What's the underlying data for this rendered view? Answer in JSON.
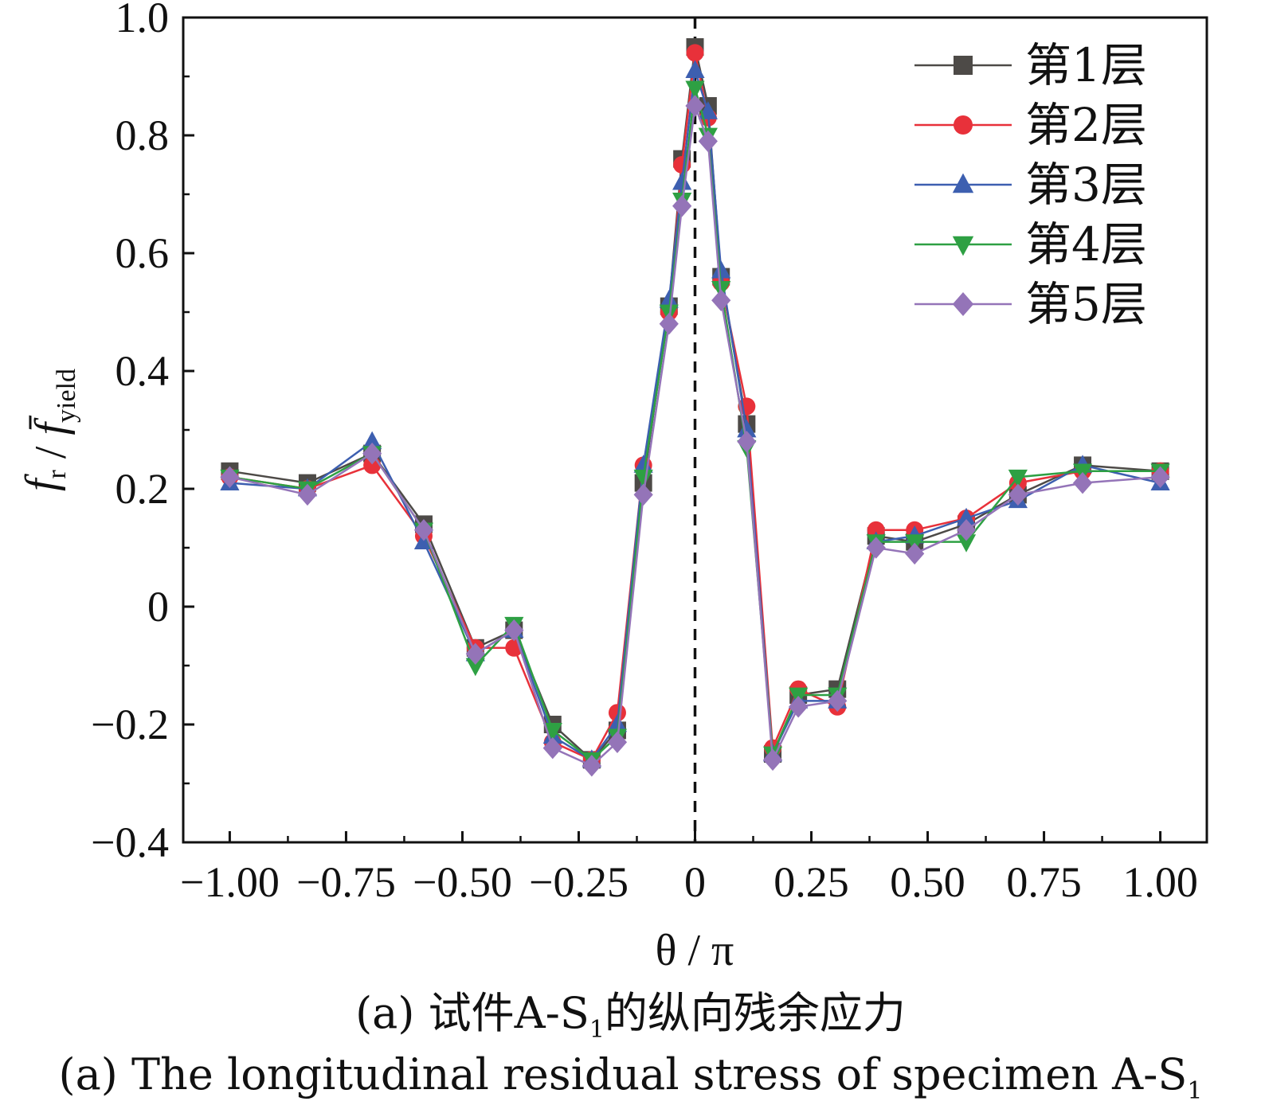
{
  "chart_data": {
    "type": "line",
    "xlabel": "θ / π",
    "ylabel": "f_r / f̄_yield",
    "xlim": [
      -1.1,
      1.1
    ],
    "ylim": [
      -0.4,
      1.0
    ],
    "x_ticks": [
      -1.0,
      -0.75,
      -0.5,
      -0.25,
      0,
      0.25,
      0.5,
      0.75,
      1.0
    ],
    "x_tick_labels": [
      "−1.00",
      "−0.75",
      "−0.50",
      "−0.25",
      "0",
      "0.25",
      "0.50",
      "0.75",
      "1.00"
    ],
    "y_ticks": [
      -0.4,
      -0.2,
      0,
      0.2,
      0.4,
      0.6,
      0.8,
      1.0
    ],
    "y_tick_labels": [
      "−0.4",
      "−0.2",
      "0",
      "0.2",
      "0.4",
      "0.6",
      "0.8",
      "1.0"
    ],
    "reference_line": {
      "x": 0,
      "style": "dashed"
    },
    "legend_position": "top-right",
    "grid": false,
    "x": [
      -1.0,
      -0.833,
      -0.694,
      -0.583,
      -0.472,
      -0.389,
      -0.306,
      -0.222,
      -0.167,
      -0.111,
      -0.056,
      -0.028,
      0,
      0.028,
      0.056,
      0.111,
      0.167,
      0.222,
      0.306,
      0.389,
      0.472,
      0.583,
      0.694,
      0.833,
      1.0
    ],
    "series": [
      {
        "name": "第1层",
        "color": "#4d4a47",
        "marker": "square",
        "values": [
          0.23,
          0.21,
          0.26,
          0.14,
          -0.07,
          -0.04,
          -0.2,
          -0.26,
          -0.21,
          0.21,
          0.51,
          0.76,
          0.95,
          0.85,
          0.56,
          0.31,
          -0.25,
          -0.15,
          -0.14,
          0.12,
          0.11,
          0.14,
          0.19,
          0.24,
          0.23
        ]
      },
      {
        "name": "第2层",
        "color": "#e8313a",
        "marker": "circle",
        "values": [
          0.22,
          0.2,
          0.24,
          0.12,
          -0.07,
          -0.07,
          -0.23,
          -0.26,
          -0.18,
          0.24,
          0.5,
          0.75,
          0.94,
          0.83,
          0.55,
          0.34,
          -0.24,
          -0.14,
          -0.17,
          0.13,
          0.13,
          0.15,
          0.21,
          0.23,
          0.23
        ]
      },
      {
        "name": "第3层",
        "color": "#3d5fb0",
        "marker": "triangle-up",
        "values": [
          0.21,
          0.2,
          0.28,
          0.11,
          -0.08,
          -0.04,
          -0.22,
          -0.26,
          -0.2,
          0.24,
          0.52,
          0.72,
          0.91,
          0.84,
          0.57,
          0.3,
          -0.25,
          -0.16,
          -0.16,
          0.11,
          0.12,
          0.15,
          0.18,
          0.24,
          0.21
        ]
      },
      {
        "name": "第4层",
        "color": "#2ea043",
        "marker": "triangle-down",
        "values": [
          0.22,
          0.2,
          0.26,
          0.13,
          -0.1,
          -0.03,
          -0.21,
          -0.26,
          -0.22,
          0.22,
          0.5,
          0.69,
          0.88,
          0.8,
          0.54,
          0.27,
          -0.25,
          -0.15,
          -0.15,
          0.11,
          0.11,
          0.11,
          0.22,
          0.23,
          0.23
        ]
      },
      {
        "name": "第5层",
        "color": "#9474b8",
        "marker": "diamond",
        "values": [
          0.22,
          0.19,
          0.26,
          0.13,
          -0.08,
          -0.04,
          -0.24,
          -0.27,
          -0.23,
          0.19,
          0.48,
          0.68,
          0.85,
          0.79,
          0.52,
          0.28,
          -0.26,
          -0.17,
          -0.16,
          0.1,
          0.09,
          0.13,
          0.19,
          0.21,
          0.22
        ]
      }
    ]
  },
  "captions": {
    "cn_prefix": "(a)  试件A-S",
    "cn_sub": "1",
    "cn_suffix": "的纵向残余应力",
    "en_prefix": "(a)  The longitudinal residual stress of specimen A-S",
    "en_sub": "1"
  }
}
